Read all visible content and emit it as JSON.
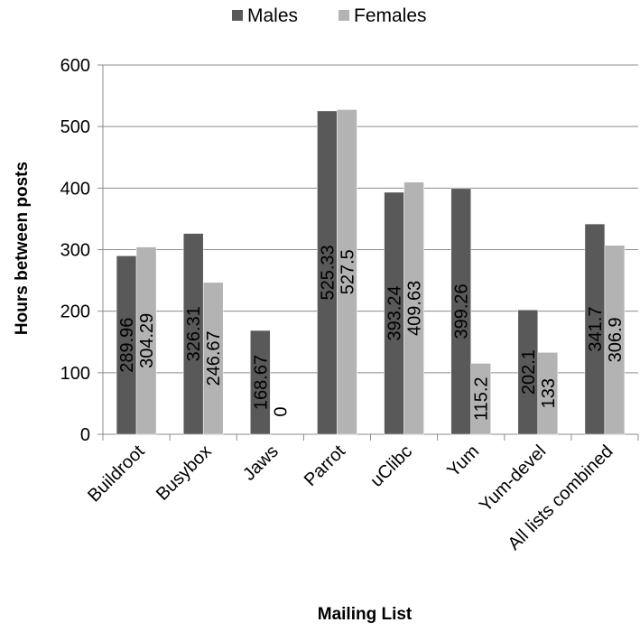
{
  "chart_data": {
    "type": "bar",
    "title": "",
    "xlabel": "Mailing List",
    "ylabel": "Hours between posts",
    "ylim": [
      0,
      600
    ],
    "yticks": [
      0,
      100,
      200,
      300,
      400,
      500,
      600
    ],
    "grid": "horizontal",
    "legend_position": "top",
    "categories": [
      "Buildroot",
      "Busybox",
      "Jaws",
      "Parrot",
      "uClibc",
      "Yum",
      "Yum-devel",
      "All lists combined"
    ],
    "series": [
      {
        "name": "Males",
        "color": "#595959",
        "values": [
          289.96,
          326.31,
          168.67,
          525.33,
          393.24,
          399.26,
          202.1,
          341.7
        ],
        "labels": [
          "289.96",
          "326.31",
          "168.67",
          "525.33",
          "393.24",
          "399.26",
          "202.1",
          "341.7"
        ]
      },
      {
        "name": "Females",
        "color": "#b3b3b3",
        "values": [
          304.29,
          246.67,
          0,
          527.5,
          409.63,
          115.2,
          133,
          306.9
        ],
        "labels": [
          "304.29",
          "246.67",
          "0",
          "527.5",
          "409.63",
          "115.2",
          "133",
          "306.9"
        ]
      }
    ]
  }
}
